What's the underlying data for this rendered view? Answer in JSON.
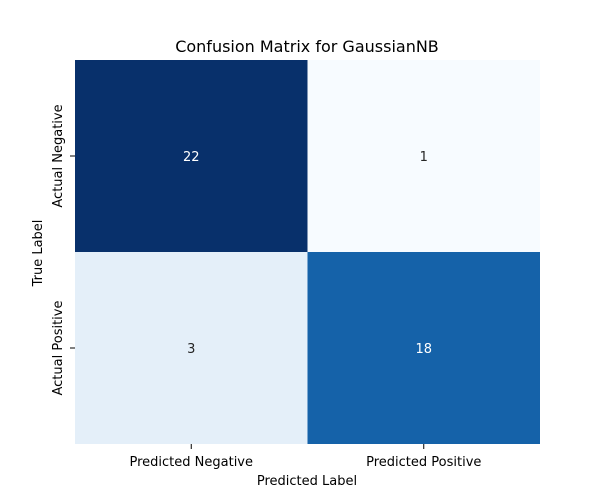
{
  "chart_data": {
    "type": "heatmap",
    "title": "Confusion Matrix for GaussianNB",
    "xlabel": "Predicted Label",
    "ylabel": "True Label",
    "x_categories": [
      "Predicted Negative",
      "Predicted Positive"
    ],
    "y_categories": [
      "Actual Negative",
      "Actual Positive"
    ],
    "values": [
      [
        22,
        1
      ],
      [
        3,
        18
      ]
    ],
    "colormap": "Blues",
    "grid": false,
    "colorbar": false,
    "colors": {
      "min": "#f7fbff",
      "mid_low": "#e3eef9",
      "mid_high": "#1460aa",
      "max": "#08306b",
      "dark_text": "#262626",
      "light_text": "#ffffff"
    }
  }
}
